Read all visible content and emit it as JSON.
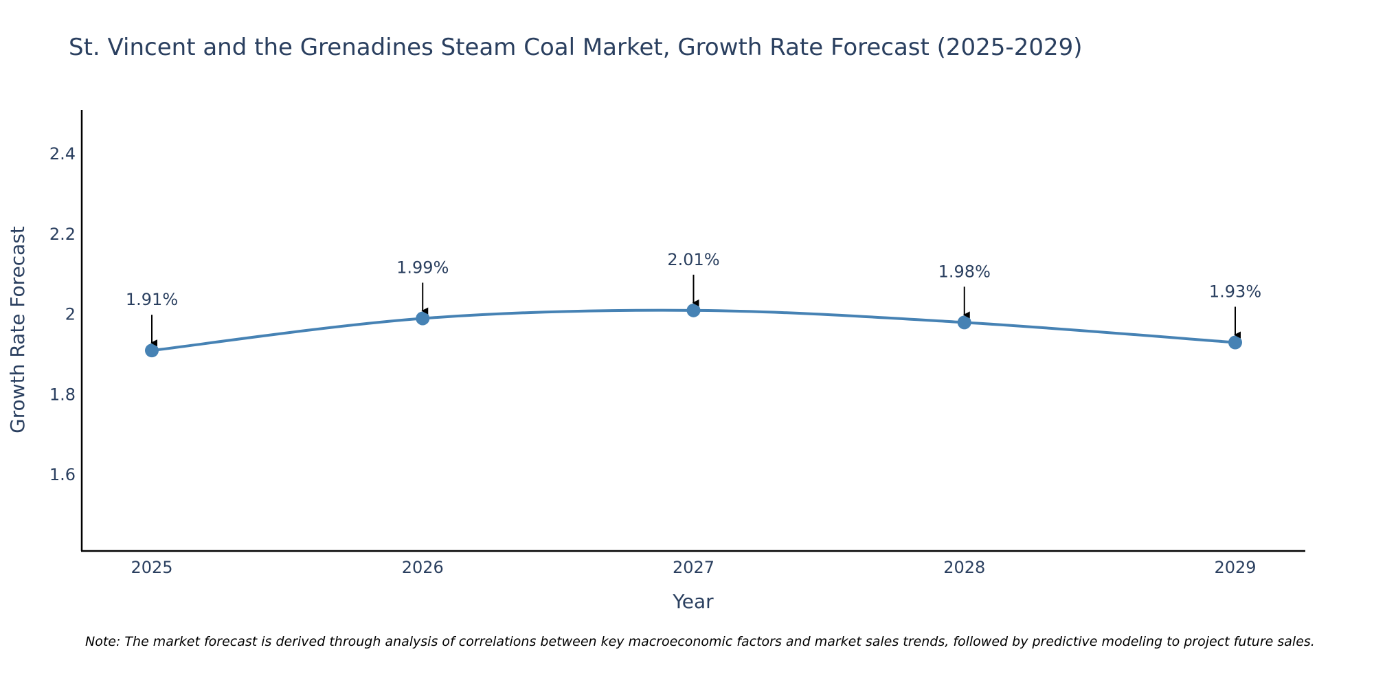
{
  "chart_data": {
    "type": "line",
    "title": "St. Vincent and the Grenadines Steam Coal Market, Growth Rate Forecast (2025-2029)",
    "xlabel": "Year",
    "ylabel": "Growth Rate Forecast",
    "categories": [
      "2025",
      "2026",
      "2027",
      "2028",
      "2029"
    ],
    "series": [
      {
        "name": "Growth Rate Forecast",
        "values": [
          1.91,
          1.99,
          2.01,
          1.98,
          1.93
        ],
        "labels": [
          "1.91%",
          "1.99%",
          "2.01%",
          "1.98%",
          "1.93%"
        ]
      }
    ],
    "ylim": [
      1.41,
      2.51
    ],
    "yticks": [
      1.6,
      1.8,
      2,
      2.2,
      2.4
    ],
    "ytick_labels": [
      "1.6",
      "1.8",
      "2",
      "2.2",
      "2.4"
    ],
    "grid": false,
    "line_color": "#4682b4",
    "axis_color": "#000000",
    "text_color": "#2a3f5f",
    "note": "Note: The market forecast is derived through analysis of correlations between key macroeconomic factors and market sales trends, followed by predictive modeling to project future sales."
  }
}
